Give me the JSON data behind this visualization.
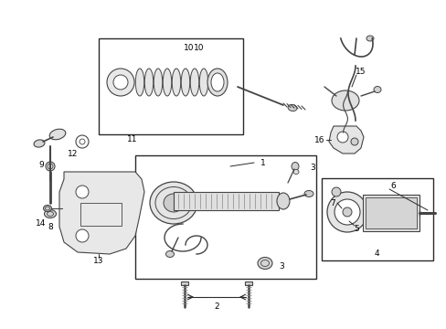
{
  "bg_color": "#ffffff",
  "lc": "#2a2a2a",
  "pc": "#444444",
  "fig_width": 4.89,
  "fig_height": 3.6,
  "dpi": 100
}
